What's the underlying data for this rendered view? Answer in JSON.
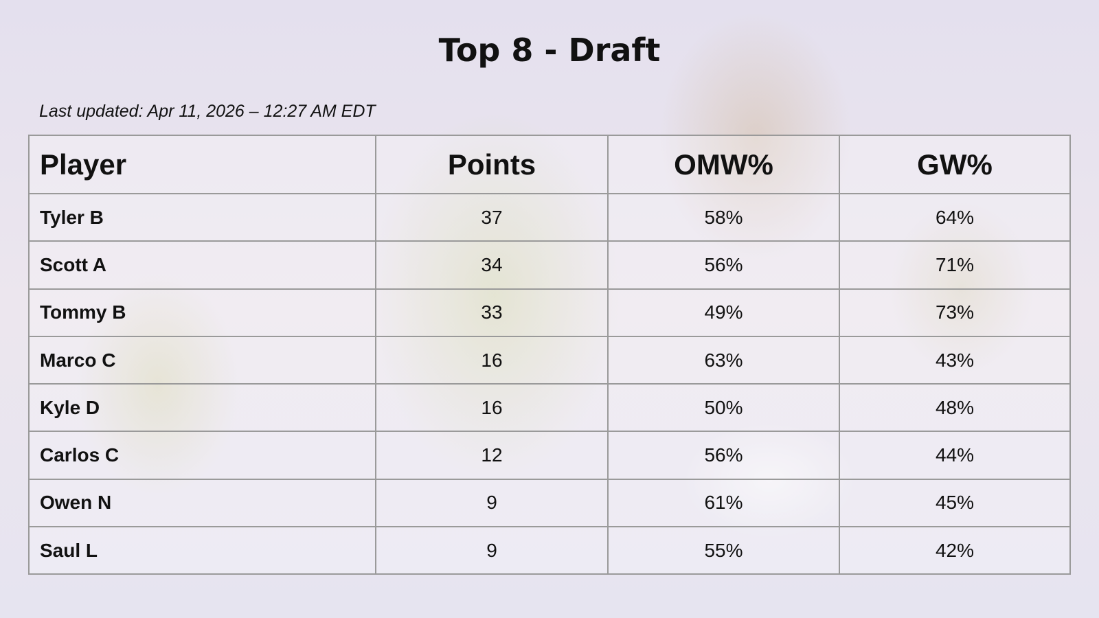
{
  "title": "Top 8 - Draft",
  "last_updated": "Last updated: Apr 11, 2026 – 12:27 AM EDT",
  "columns": [
    "Player",
    "Points",
    "OMW%",
    "GW%"
  ],
  "rows": [
    [
      "Tyler B",
      "37",
      "58%",
      "64%"
    ],
    [
      "Scott A",
      "34",
      "56%",
      "71%"
    ],
    [
      "Tommy B",
      "33",
      "49%",
      "73%"
    ],
    [
      "Marco C",
      "16",
      "63%",
      "43%"
    ],
    [
      "Kyle D",
      "16",
      "50%",
      "48%"
    ],
    [
      "Carlos C",
      "12",
      "56%",
      "44%"
    ],
    [
      "Owen N",
      "9",
      "61%",
      "45%"
    ],
    [
      "Saul L",
      "9",
      "55%",
      "42%"
    ]
  ]
}
